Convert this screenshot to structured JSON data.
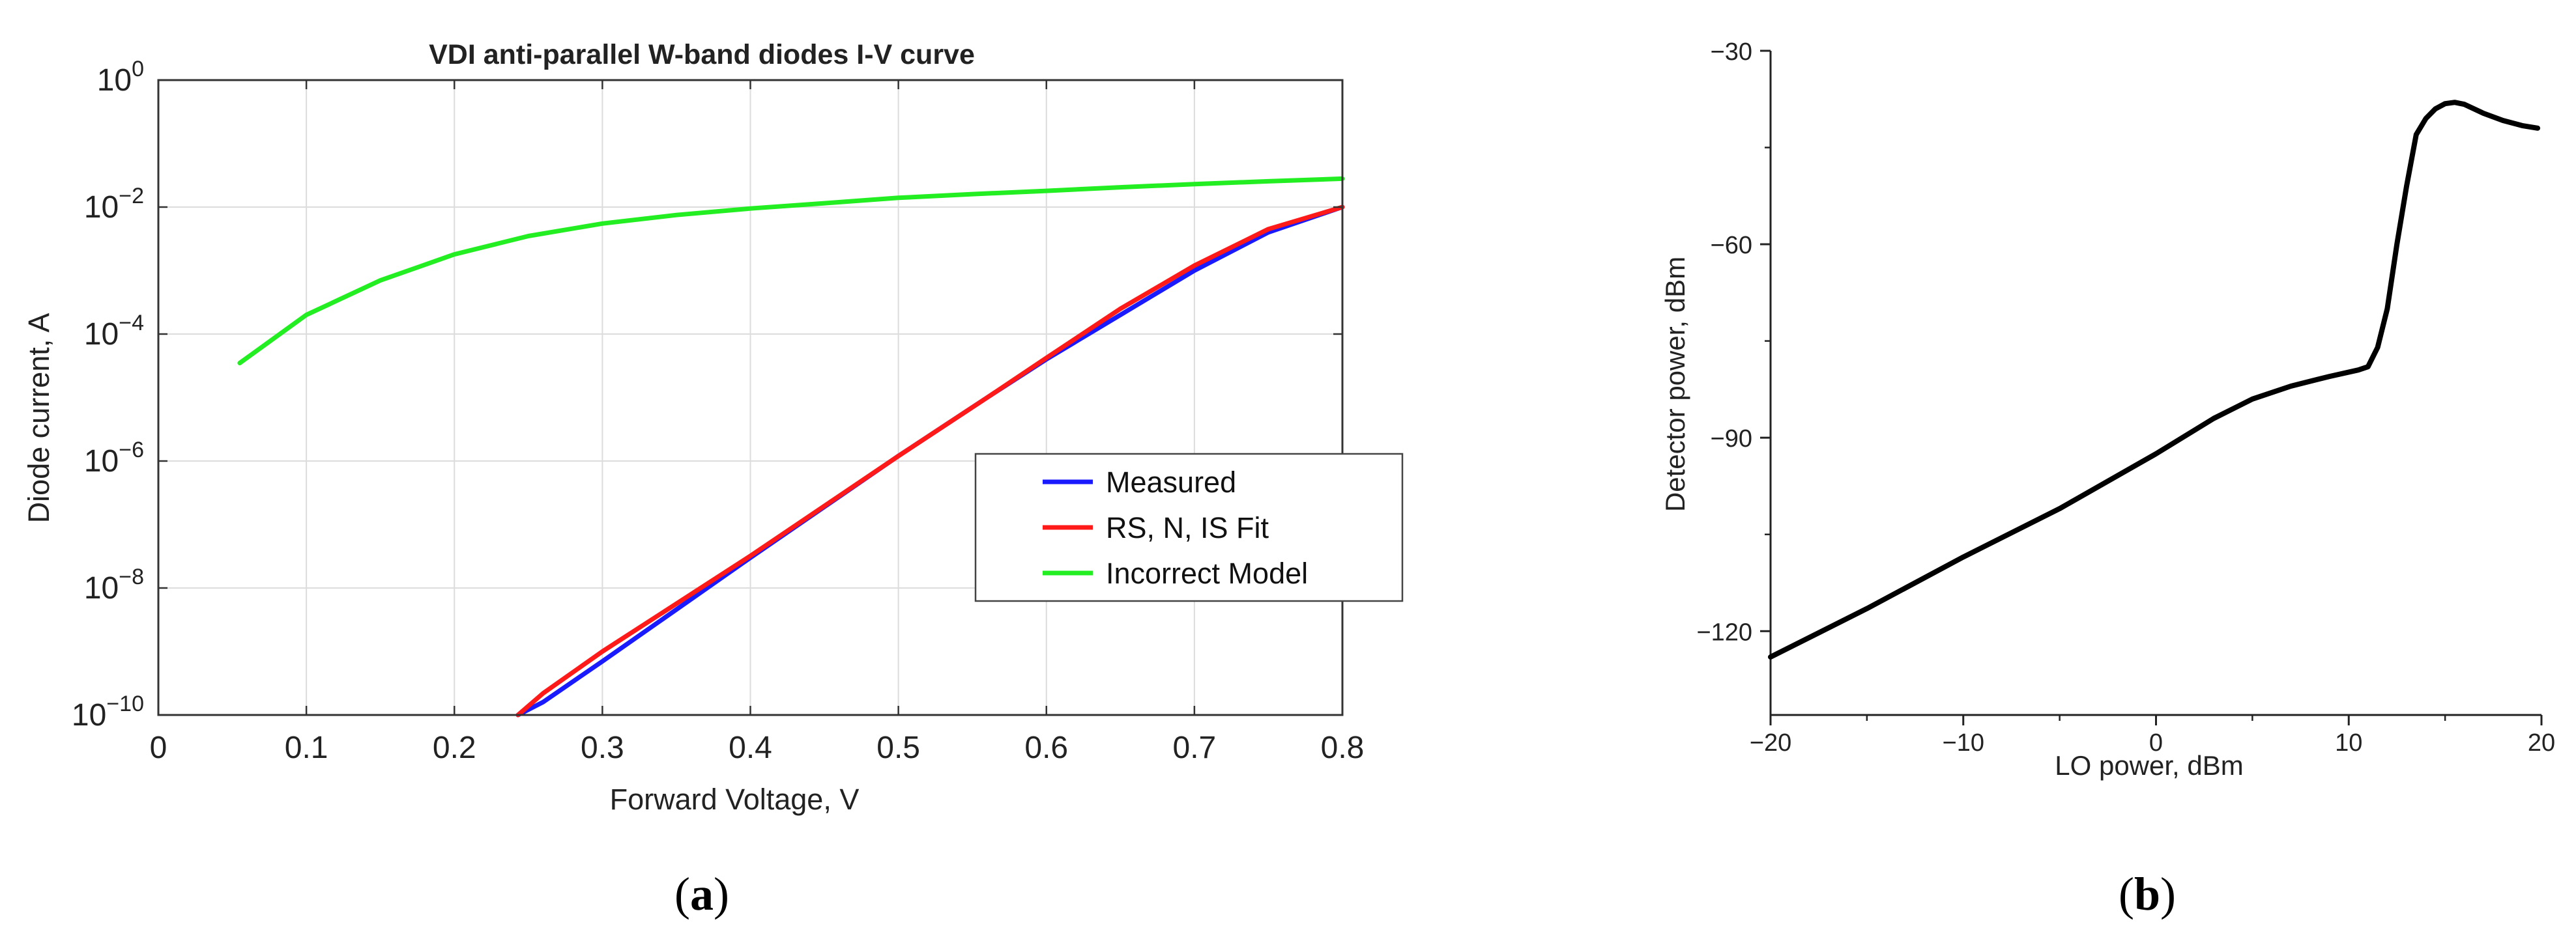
{
  "chart_data": [
    {
      "type": "line",
      "panel": "(a)",
      "panel_letter": "a",
      "title": "VDI anti-parallel W-band diodes I-V curve",
      "xlabel": "Forward Voltage, V",
      "ylabel": "Diode current, A",
      "xscale": "linear",
      "yscale": "log",
      "xlim": [
        0,
        0.8
      ],
      "ylim": [
        1e-10,
        1
      ],
      "x_ticks": [
        0,
        0.1,
        0.2,
        0.3,
        0.4,
        0.5,
        0.6,
        0.7,
        0.8
      ],
      "x_tick_labels": [
        "0",
        "0.1",
        "0.2",
        "0.3",
        "0.4",
        "0.5",
        "0.6",
        "0.7",
        "0.8"
      ],
      "y_ticks": [
        {
          "value": 1,
          "base": "10",
          "exp": "0"
        },
        {
          "value": 0.01,
          "base": "10",
          "exp": "−2"
        },
        {
          "value": 0.0001,
          "base": "10",
          "exp": "−4"
        },
        {
          "value": 1e-06,
          "base": "10",
          "exp": "−6"
        },
        {
          "value": 1e-08,
          "base": "10",
          "exp": "−8"
        },
        {
          "value": 1e-10,
          "base": "10",
          "exp": "−10"
        }
      ],
      "grid": true,
      "legend_position": "lower-right",
      "series": [
        {
          "name": "Measured",
          "color": "#1a1aff",
          "x": [
            0.243,
            0.26,
            0.3,
            0.4,
            0.5,
            0.56,
            0.6,
            0.65,
            0.7,
            0.75,
            0.8
          ],
          "y": [
            1e-10,
            1.6e-10,
            7e-10,
            3e-08,
            1.2e-06,
            1e-05,
            4e-05,
            0.0002,
            0.001,
            0.004,
            0.01
          ]
        },
        {
          "name": "RS, N, IS Fit",
          "color": "#ff1a1a",
          "x": [
            0.243,
            0.26,
            0.3,
            0.4,
            0.5,
            0.56,
            0.6,
            0.65,
            0.7,
            0.75,
            0.8
          ],
          "y": [
            1e-10,
            2.2e-10,
            1e-09,
            3.2e-08,
            1.2e-06,
            1e-05,
            4.2e-05,
            0.00025,
            0.0012,
            0.0045,
            0.01
          ]
        },
        {
          "name": "Incorrect Model",
          "color": "#22ee22",
          "x": [
            0.055,
            0.1,
            0.15,
            0.2,
            0.25,
            0.3,
            0.35,
            0.4,
            0.45,
            0.5,
            0.55,
            0.6,
            0.65,
            0.7,
            0.75,
            0.8
          ],
          "y": [
            3.5e-05,
            0.0002,
            0.0007,
            0.0018,
            0.0035,
            0.0055,
            0.0075,
            0.0095,
            0.0115,
            0.014,
            0.016,
            0.018,
            0.0205,
            0.023,
            0.0255,
            0.028
          ]
        }
      ]
    },
    {
      "type": "line",
      "panel": "(b)",
      "panel_letter": "b",
      "title": "",
      "xlabel": "LO power, dBm",
      "ylabel": "Detector power, dBm",
      "xscale": "linear",
      "yscale": "linear",
      "xlim": [
        -20,
        20
      ],
      "ylim": [
        -133,
        -30
      ],
      "x_ticks": [
        -20,
        -10,
        0,
        10,
        20
      ],
      "x_tick_labels": [
        "−20",
        "−10",
        "0",
        "10",
        "20"
      ],
      "y_ticks": [
        -30,
        -60,
        -90,
        -120
      ],
      "y_tick_labels": [
        "−30",
        "−60",
        "−90",
        "−120"
      ],
      "grid": false,
      "series": [
        {
          "name": "Detector power",
          "color": "#000000",
          "x": [
            -20,
            -15,
            -10,
            -5,
            0,
            3,
            5,
            7,
            9,
            10.5,
            11,
            11.5,
            12,
            12.5,
            13,
            13.5,
            14,
            14.5,
            15,
            15.5,
            16,
            17,
            18,
            19,
            19.8
          ],
          "y": [
            -124,
            -116.5,
            -108.5,
            -101,
            -92.5,
            -87,
            -84,
            -82,
            -80.5,
            -79.5,
            -79,
            -76,
            -70,
            -60,
            -51,
            -43,
            -40.5,
            -39,
            -38.2,
            -38,
            -38.3,
            -39.7,
            -40.8,
            -41.6,
            -42
          ]
        }
      ]
    }
  ]
}
